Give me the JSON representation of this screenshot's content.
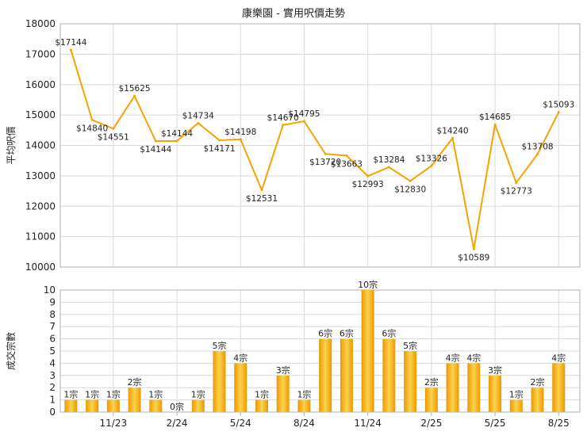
{
  "title": "康樂園 - 實用呎價走勢",
  "colors": {
    "line": "#f5a300",
    "bar_light": "#ffd24d",
    "bar_dark": "#e89a00",
    "grid": "#d9d9d9",
    "plot_border": "#b0b0b0",
    "text": "#222222"
  },
  "chart_data": [
    {
      "type": "line",
      "title": "康樂園 - 實用呎價走勢",
      "ylabel": "平均呎價",
      "ylim": [
        10000,
        18000
      ],
      "yticks": [
        10000,
        11000,
        12000,
        13000,
        14000,
        15000,
        16000,
        17000,
        18000
      ],
      "x_tick_labels": [
        "11/23",
        "2/24",
        "5/24",
        "8/24",
        "11/24",
        "2/25",
        "5/25",
        "8/25"
      ],
      "grid": true,
      "series": [
        {
          "values": [
            17144,
            14840,
            14551,
            15625,
            14144,
            14144,
            14734,
            14171,
            14198,
            12531,
            14670,
            14795,
            13720,
            13663,
            12993,
            13284,
            12830,
            13326,
            14240,
            10589,
            14685,
            12773,
            13708,
            15093
          ],
          "labels": [
            "$17144",
            "$14840",
            "$14551",
            "$15625",
            "$14144",
            "$14144",
            "$14734",
            "$14171",
            "$14198",
            "$12531",
            "$14670",
            "$14795",
            "$13720",
            "$13663",
            "$12993",
            "$13284",
            "$12830",
            "$13326",
            "$14240",
            "$10589",
            "$14685",
            "$12773",
            "$13708",
            "$15093"
          ]
        }
      ]
    },
    {
      "type": "bar",
      "ylabel": "成交宗數",
      "ylim": [
        0,
        10
      ],
      "yticks": [
        0,
        1,
        2,
        3,
        4,
        5,
        6,
        7,
        8,
        9,
        10
      ],
      "x_tick_labels": [
        "11/23",
        "2/24",
        "5/24",
        "8/24",
        "11/24",
        "2/25",
        "5/25",
        "8/25"
      ],
      "grid": true,
      "series": [
        {
          "values": [
            1,
            1,
            1,
            2,
            1,
            0,
            1,
            5,
            4,
            1,
            3,
            1,
            6,
            6,
            10,
            6,
            5,
            2,
            4,
            4,
            3,
            1,
            2,
            4
          ],
          "labels": [
            "1宗",
            "1宗",
            "1宗",
            "2宗",
            "1宗",
            "0宗",
            "1宗",
            "5宗",
            "4宗",
            "1宗",
            "3宗",
            "1宗",
            "6宗",
            "6宗",
            "10宗",
            "6宗",
            "5宗",
            "2宗",
            "4宗",
            "4宗",
            "3宗",
            "1宗",
            "2宗",
            "4宗"
          ]
        }
      ]
    }
  ]
}
